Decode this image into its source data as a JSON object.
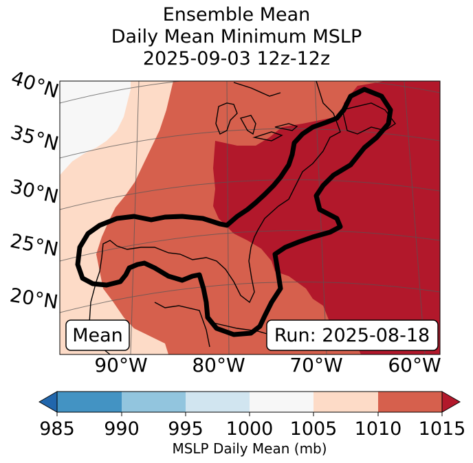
{
  "title": {
    "line1": "Ensemble Mean",
    "line2": "Daily Mean Minimum MSLP",
    "line3": "2025-09-03 12z-12z"
  },
  "map": {
    "lat_labels": [
      "40°N",
      "35°N",
      "30°N",
      "25°N",
      "20°N"
    ],
    "lon_labels": [
      "90°W",
      "80°W",
      "70°W",
      "60°W"
    ],
    "mean_box": "Mean",
    "run_box": "Run: 2025-08-18",
    "colors": {
      "c1000_1005": "#f7f7f7",
      "c1005_1010": "#fddbc7",
      "c1010_1015": "#d6604d",
      "c1015_plus": "#b2182b",
      "contour": "#000000"
    }
  },
  "colorbar": {
    "ticks": [
      "985",
      "990",
      "995",
      "1000",
      "1005",
      "1010",
      "1015"
    ],
    "label": "MSLP Daily Mean (mb)",
    "bins": [
      {
        "range": "<985",
        "color": "#2166ac"
      },
      {
        "range": "985-990",
        "color": "#4393c3"
      },
      {
        "range": "990-995",
        "color": "#92c5de"
      },
      {
        "range": "995-1000",
        "color": "#d1e5f0"
      },
      {
        "range": "1000-1005",
        "color": "#f7f7f7"
      },
      {
        "range": "1005-1010",
        "color": "#fddbc7"
      },
      {
        "range": "1010-1015",
        "color": "#d6604d"
      },
      {
        "range": ">1015",
        "color": "#b2182b"
      }
    ]
  }
}
